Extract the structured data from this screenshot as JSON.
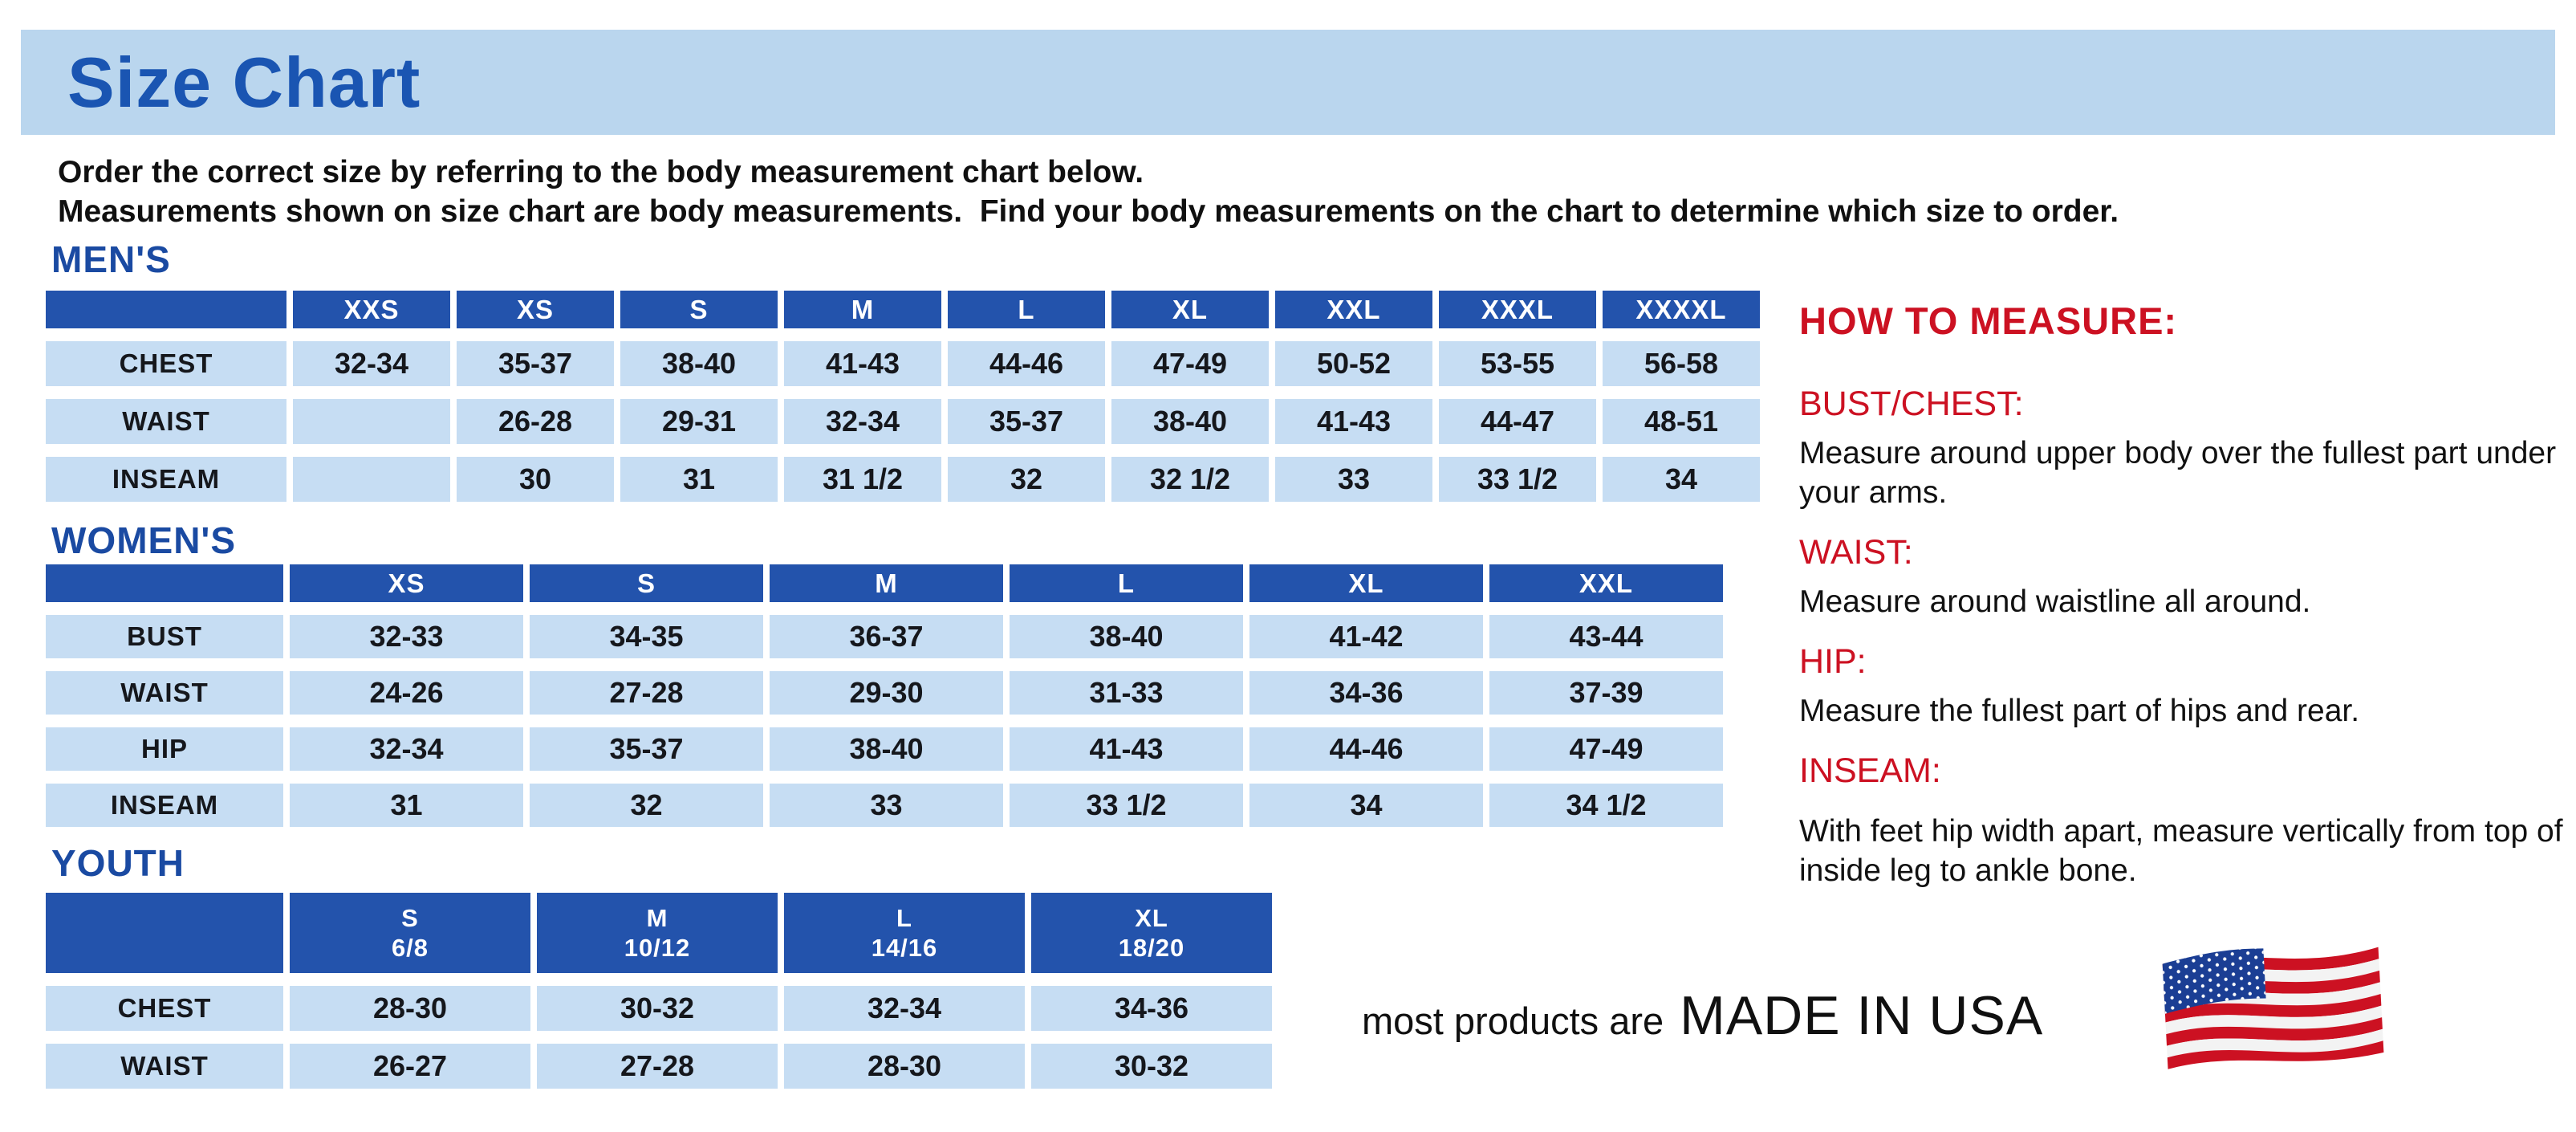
{
  "banner": {
    "title": "Size Chart"
  },
  "intro": {
    "line1": "Order the correct size by referring to the body measurement chart below.",
    "line2": "Measurements shown on size chart are body measurements.  Find your body measurements on the chart to determine which size to order."
  },
  "colors": {
    "banner_blue": "#bad6ee",
    "title_blue": "#1a55b2",
    "section_blue": "#1a4aa2",
    "header_cell_blue": "#2353ac",
    "data_cell_blue": "#c6ddf3",
    "heading_red": "#cc1122"
  },
  "tables": {
    "mens": {
      "label": "MEN'S",
      "sizes": [
        "XXS",
        "XS",
        "S",
        "M",
        "L",
        "XL",
        "XXL",
        "XXXL",
        "XXXXL"
      ],
      "rows": [
        {
          "label": "CHEST",
          "values": [
            "32-34",
            "35-37",
            "38-40",
            "41-43",
            "44-46",
            "47-49",
            "50-52",
            "53-55",
            "56-58"
          ]
        },
        {
          "label": "WAIST",
          "values": [
            "",
            "26-28",
            "29-31",
            "32-34",
            "35-37",
            "38-40",
            "41-43",
            "44-47",
            "48-51"
          ]
        },
        {
          "label": "INSEAM",
          "values": [
            "",
            "30",
            "31",
            "31 1/2",
            "32",
            "32 1/2",
            "33",
            "33 1/2",
            "34"
          ]
        }
      ]
    },
    "womens": {
      "label": "WOMEN'S",
      "sizes": [
        "XS",
        "S",
        "M",
        "L",
        "XL",
        "XXL"
      ],
      "rows": [
        {
          "label": "BUST",
          "values": [
            "32-33",
            "34-35",
            "36-37",
            "38-40",
            "41-42",
            "43-44"
          ]
        },
        {
          "label": "WAIST",
          "values": [
            "24-26",
            "27-28",
            "29-30",
            "31-33",
            "34-36",
            "37-39"
          ]
        },
        {
          "label": "HIP",
          "values": [
            "32-34",
            "35-37",
            "38-40",
            "41-43",
            "44-46",
            "47-49"
          ]
        },
        {
          "label": "INSEAM",
          "values": [
            "31",
            "32",
            "33",
            "33 1/2",
            "34",
            "34 1/2"
          ]
        }
      ]
    },
    "youth": {
      "label": "YOUTH",
      "sizes": [
        {
          "label": "S",
          "range": "6/8"
        },
        {
          "label": "M",
          "range": "10/12"
        },
        {
          "label": "L",
          "range": "14/16"
        },
        {
          "label": "XL",
          "range": "18/20"
        }
      ],
      "rows": [
        {
          "label": "CHEST",
          "values": [
            "28-30",
            "30-32",
            "32-34",
            "34-36"
          ]
        },
        {
          "label": "WAIST",
          "values": [
            "26-27",
            "27-28",
            "28-30",
            "30-32"
          ]
        }
      ]
    }
  },
  "how_to_measure": {
    "title": "HOW TO MEASURE:",
    "sections": [
      {
        "heading": "BUST/CHEST:",
        "text": "Measure around upper body over the fullest part under your arms."
      },
      {
        "heading": "WAIST:",
        "text": "Measure around waistline all around."
      },
      {
        "heading": "HIP:",
        "text": "Measure the fullest part of hips and rear."
      },
      {
        "heading": "INSEAM:",
        "text": "With feet hip width apart, measure vertically from top of inside leg to ankle bone."
      }
    ]
  },
  "footer": {
    "prefix": "most products are",
    "emphasis": "MADE IN USA",
    "flag_icon": "usa-flag-icon"
  }
}
